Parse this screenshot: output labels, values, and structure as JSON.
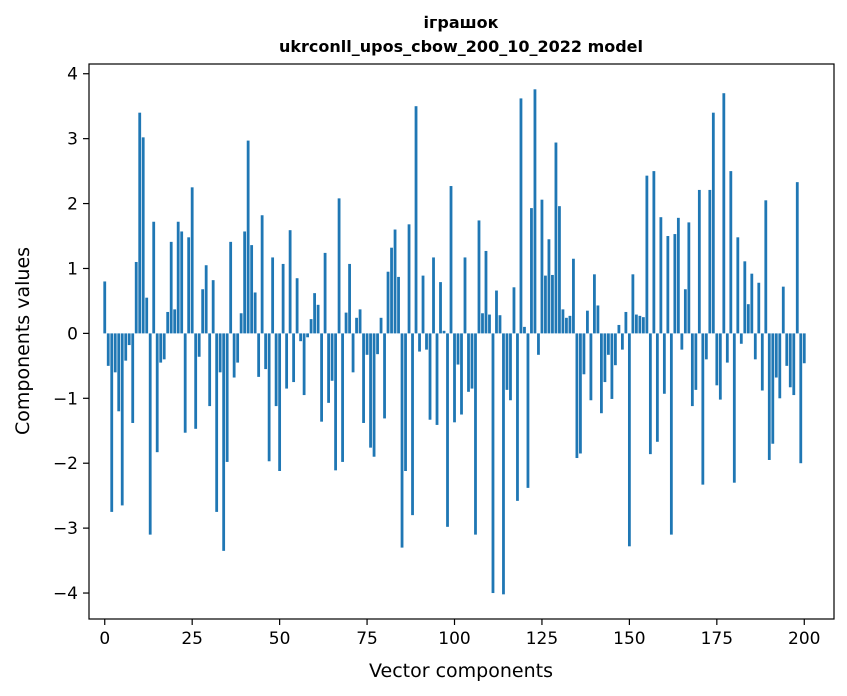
{
  "chart_data": {
    "type": "bar",
    "title_line1": "іграшок",
    "title_line2": "ukrconll_upos_cbow_200_10_2022 model",
    "xlabel": "Vector components",
    "ylabel": "Components values",
    "xlim": [
      -4.5,
      208.5
    ],
    "ylim": [
      -4.4,
      4.15
    ],
    "xticks": [
      0,
      25,
      50,
      75,
      100,
      125,
      150,
      175,
      200
    ],
    "yticks": [
      -4,
      -3,
      -2,
      -1,
      0,
      1,
      2,
      3,
      4
    ],
    "ytick_labels": [
      "−4",
      "−3",
      "−2",
      "−1",
      "0",
      "1",
      "2",
      "3",
      "4"
    ],
    "grid": false,
    "color": "#1f77b4",
    "values": [
      0.8,
      -0.5,
      -2.75,
      -0.6,
      -1.2,
      -2.65,
      -0.42,
      -0.18,
      -1.38,
      1.1,
      3.4,
      3.02,
      0.55,
      -3.1,
      1.72,
      -1.83,
      -0.45,
      -0.4,
      0.33,
      1.41,
      0.37,
      1.72,
      1.57,
      -1.53,
      1.48,
      2.25,
      -1.47,
      -0.36,
      0.68,
      1.05,
      -1.12,
      0.82,
      -2.75,
      -0.6,
      -3.35,
      -1.98,
      1.41,
      -0.68,
      -0.45,
      0.31,
      1.57,
      2.97,
      1.36,
      0.63,
      -0.67,
      1.82,
      -0.55,
      -1.97,
      1.17,
      -1.12,
      -2.12,
      1.07,
      -0.85,
      1.59,
      -0.75,
      0.85,
      -0.12,
      -0.95,
      -0.06,
      0.22,
      0.62,
      0.44,
      -1.36,
      1.24,
      -1.07,
      -0.73,
      -2.11,
      2.08,
      -1.98,
      0.32,
      1.07,
      -0.6,
      0.24,
      0.37,
      -1.38,
      -0.33,
      -1.76,
      -1.9,
      -0.32,
      0.24,
      -1.31,
      0.95,
      1.32,
      1.6,
      0.87,
      -3.3,
      -2.12,
      1.68,
      -2.8,
      3.5,
      -0.28,
      0.89,
      -0.25,
      -1.33,
      1.17,
      -1.41,
      0.79,
      0.04,
      -2.98,
      2.27,
      -1.37,
      -0.48,
      -1.25,
      1.17,
      -0.9,
      -0.85,
      -3.1,
      1.74,
      0.31,
      1.27,
      0.29,
      -4.0,
      0.66,
      0.28,
      -4.02,
      -0.87,
      -1.03,
      0.71,
      -2.58,
      3.62,
      0.1,
      -2.38,
      1.93,
      3.76,
      -0.33,
      2.06,
      0.89,
      1.45,
      0.9,
      2.94,
      1.96,
      0.37,
      0.24,
      0.27,
      1.15,
      -1.92,
      -1.85,
      -0.63,
      0.35,
      -1.03,
      0.91,
      0.43,
      -1.23,
      -0.75,
      -0.33,
      -1.01,
      -0.49,
      0.13,
      -0.25,
      0.33,
      -3.28,
      0.91,
      0.29,
      0.27,
      0.25,
      2.43,
      -1.86,
      2.5,
      -1.67,
      1.79,
      -0.93,
      1.5,
      -3.1,
      1.53,
      1.78,
      -0.25,
      0.68,
      1.71,
      -1.12,
      -0.87,
      2.21,
      -2.33,
      -0.4,
      2.21,
      3.4,
      -0.8,
      -1.02,
      3.7,
      -0.45,
      2.5,
      -2.3,
      1.48,
      -0.16,
      1.11,
      0.45,
      0.92,
      -0.4,
      0.78,
      -0.88,
      2.05,
      -1.95,
      -1.7,
      -0.68,
      -1.0,
      0.72,
      -0.5,
      -0.83,
      -0.95,
      2.33,
      -2.0,
      -0.46
    ]
  }
}
